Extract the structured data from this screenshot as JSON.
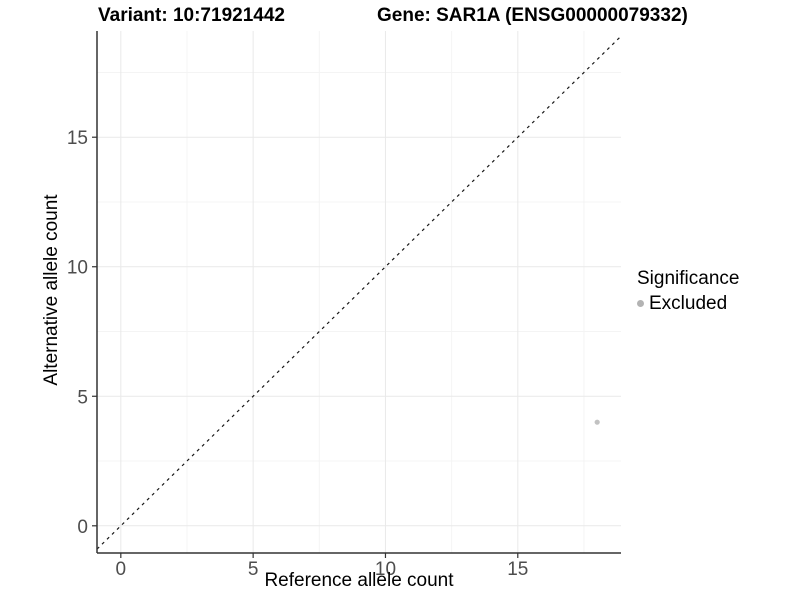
{
  "chart_data": {
    "type": "scatter",
    "title_variant": "Variant: 10:71921442",
    "title_gene": "Gene: SAR1A (ENSG00000079332)",
    "xlabel": "Reference allele count",
    "ylabel": "Alternative allele count",
    "xlim": [
      -0.9,
      18.9
    ],
    "ylim": [
      -1.05,
      19.1
    ],
    "xticks": [
      0,
      5,
      10,
      15
    ],
    "yticks": [
      0,
      5,
      10,
      15
    ],
    "xticks_minor": [
      2.5,
      7.5,
      12.5,
      17.5
    ],
    "yticks_minor": [
      2.5,
      7.5,
      12.5,
      17.5
    ],
    "grid": "major+minor",
    "points": [
      {
        "x": 18,
        "y": 4,
        "series": "Excluded"
      }
    ],
    "identity_line": {
      "slope": 1,
      "intercept": 0,
      "linetype": "dashed"
    },
    "legend": {
      "title": "Significance",
      "position": "right",
      "items": [
        {
          "label": "Excluded",
          "color": "#b3b3b3"
        }
      ]
    },
    "colors": {
      "point_excluded": "#c2c2c2",
      "axis_line": "#333333",
      "tick_mark": "#333333",
      "tick_text": "#4d4d4d",
      "grid_major": "#e9e9e9",
      "grid_minor": "#f4f4f4",
      "reference_line": "#1a1a1a",
      "background": "#ffffff"
    }
  }
}
